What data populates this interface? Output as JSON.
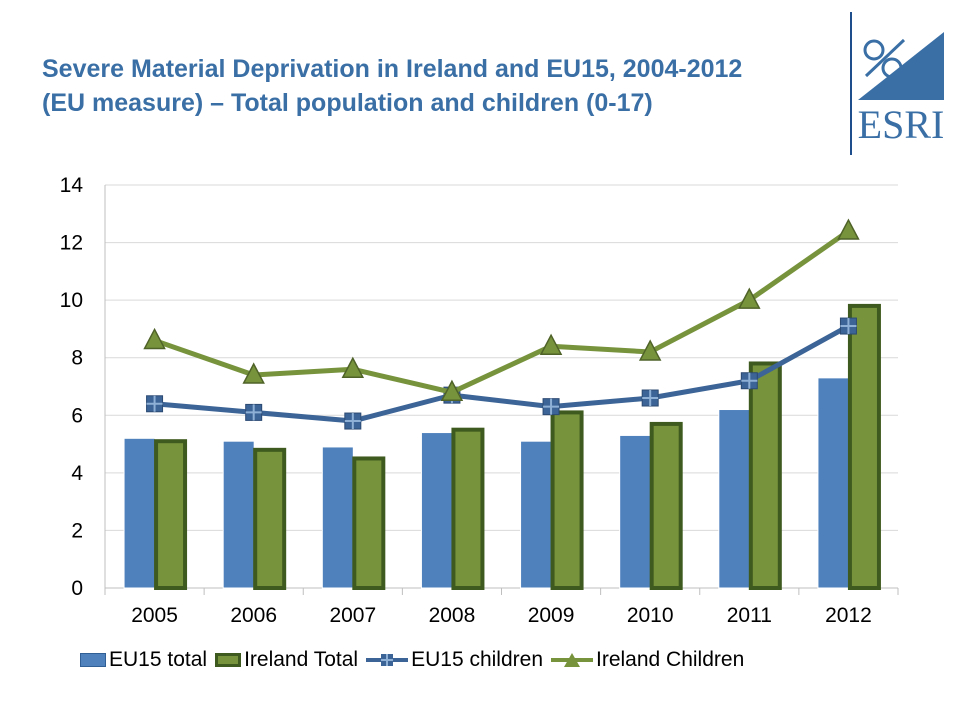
{
  "header": {
    "title_line1": "Severe Material Deprivation in Ireland and EU15, 2004-2012",
    "title_line2": "(EU measure) – Total population and children (0-17)"
  },
  "logo": {
    "text": "ESRI",
    "color": "#3a6fa6"
  },
  "chart_data": {
    "type": "bar",
    "title": "Severe Material Deprivation in Ireland and EU15, 2004-2012 (EU measure) – Total population and children (0-17)",
    "categories": [
      "2005",
      "2006",
      "2007",
      "2008",
      "2009",
      "2010",
      "2011",
      "2012"
    ],
    "ylim": [
      0,
      14
    ],
    "yticks": [
      "0",
      "2",
      "4",
      "6",
      "8",
      "10",
      "12",
      "14"
    ],
    "grid": true,
    "legend_position": "bottom",
    "series": [
      {
        "name": "EU15 total",
        "kind": "bar",
        "color": "#4f81bd",
        "values": [
          5.2,
          5.1,
          4.9,
          5.4,
          5.1,
          5.3,
          6.2,
          7.3
        ]
      },
      {
        "name": "Ireland Total",
        "kind": "bar",
        "color": "#77933c",
        "values": [
          5.1,
          4.8,
          4.5,
          5.5,
          6.1,
          5.7,
          7.8,
          9.8
        ]
      },
      {
        "name": "EU15 children",
        "kind": "line",
        "marker": "square-plus",
        "color": "#3c6496",
        "values": [
          6.4,
          6.1,
          5.8,
          6.7,
          6.3,
          6.6,
          7.2,
          9.1
        ]
      },
      {
        "name": "Ireland Children",
        "kind": "line",
        "marker": "triangle",
        "color": "#77933c",
        "values": [
          8.6,
          7.4,
          7.6,
          6.8,
          8.4,
          8.2,
          10.0,
          12.4
        ]
      }
    ]
  }
}
